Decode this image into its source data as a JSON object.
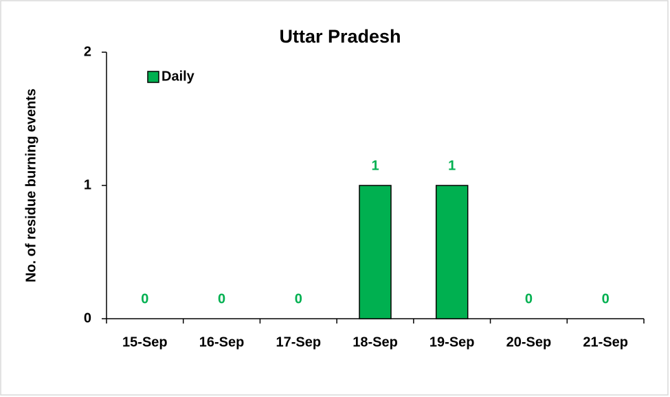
{
  "chart_data": {
    "type": "bar",
    "title": "Uttar Pradesh",
    "ylabel": "No. of residue burning events",
    "categories": [
      "15-Sep",
      "16-Sep",
      "17-Sep",
      "18-Sep",
      "19-Sep",
      "20-Sep",
      "21-Sep"
    ],
    "series": [
      {
        "name": "Daily",
        "color": "#00b050",
        "values": [
          0,
          0,
          0,
          1,
          1,
          0,
          0
        ]
      }
    ],
    "ylim": [
      0,
      2
    ],
    "yticks": [
      0,
      1,
      2
    ],
    "grid": false,
    "legend": "top-left"
  }
}
